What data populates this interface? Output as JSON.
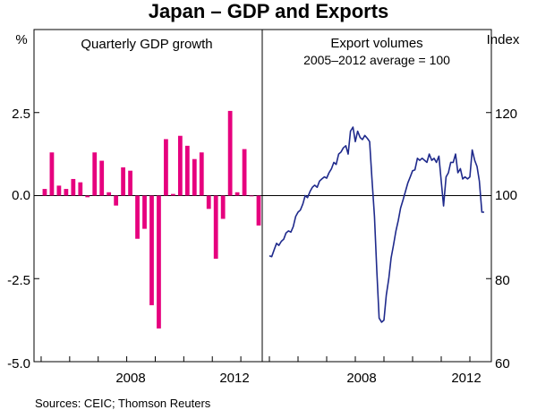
{
  "title": "Japan – GDP and Exports",
  "left_unit": "%",
  "right_unit": "Index",
  "source": "Sources: CEIC; Thomson Reuters",
  "colors": {
    "gdp": "#e6007e",
    "exports": "#1f2a8c",
    "axis": "#000000"
  },
  "chart_data": [
    {
      "type": "bar",
      "title": "Quarterly GDP growth",
      "ylabel": "%",
      "ylim": [
        -5.0,
        5.0
      ],
      "yticks": [
        "2.5",
        "0.0",
        "-2.5",
        "-5.0"
      ],
      "xlim": [
        2004.75,
        2012.75
      ],
      "xticks": [
        {
          "value": 2008,
          "label": "2008"
        },
        {
          "value": 2012,
          "label": "2012"
        }
      ],
      "categories": [
        "2005Q1",
        "2005Q2",
        "2005Q3",
        "2005Q4",
        "2006Q1",
        "2006Q2",
        "2006Q3",
        "2006Q4",
        "2007Q1",
        "2007Q2",
        "2007Q3",
        "2007Q4",
        "2008Q1",
        "2008Q2",
        "2008Q3",
        "2008Q4",
        "2009Q1",
        "2009Q2",
        "2009Q3",
        "2009Q4",
        "2010Q1",
        "2010Q2",
        "2010Q3",
        "2010Q4",
        "2011Q1",
        "2011Q2",
        "2011Q3",
        "2011Q4",
        "2012Q1",
        "2012Q2",
        "2012Q3"
      ],
      "x": [
        2005.0,
        2005.25,
        2005.5,
        2005.75,
        2006.0,
        2006.25,
        2006.5,
        2006.75,
        2007.0,
        2007.25,
        2007.5,
        2007.75,
        2008.0,
        2008.25,
        2008.5,
        2008.75,
        2009.0,
        2009.25,
        2009.5,
        2009.75,
        2010.0,
        2010.25,
        2010.5,
        2010.75,
        2011.0,
        2011.25,
        2011.5,
        2011.75,
        2012.0,
        2012.25,
        2012.5
      ],
      "values": [
        0.2,
        1.3,
        0.3,
        0.2,
        0.5,
        0.4,
        -0.05,
        1.3,
        1.05,
        0.1,
        -0.3,
        0.85,
        0.75,
        -1.3,
        -1.0,
        -3.3,
        -4.0,
        1.7,
        0.05,
        1.8,
        1.5,
        1.1,
        1.3,
        -0.4,
        -1.9,
        -0.7,
        2.55,
        0.1,
        1.4,
        0.0,
        -0.9
      ]
    },
    {
      "type": "line",
      "title": "Export volumes",
      "subtitle": "2005–2012 average = 100",
      "ylabel": "Index",
      "ylim": [
        60,
        140
      ],
      "yticks": [
        "120",
        "100",
        "80",
        "60"
      ],
      "xlim": [
        2004.75,
        2012.75
      ],
      "xticks": [
        {
          "value": 2008,
          "label": "2008"
        },
        {
          "value": 2012,
          "label": "2012"
        }
      ],
      "series": [
        {
          "name": "Export volumes",
          "x": [
            2005.0,
            2005.08,
            2005.17,
            2005.25,
            2005.33,
            2005.42,
            2005.5,
            2005.58,
            2005.67,
            2005.75,
            2005.83,
            2005.92,
            2006.0,
            2006.08,
            2006.17,
            2006.25,
            2006.33,
            2006.42,
            2006.5,
            2006.58,
            2006.67,
            2006.75,
            2006.83,
            2006.92,
            2007.0,
            2007.08,
            2007.17,
            2007.25,
            2007.33,
            2007.42,
            2007.5,
            2007.58,
            2007.67,
            2007.75,
            2007.83,
            2007.92,
            2008.0,
            2008.08,
            2008.17,
            2008.25,
            2008.33,
            2008.42,
            2008.5,
            2008.58,
            2008.67,
            2008.75,
            2008.83,
            2008.92,
            2009.0,
            2009.08,
            2009.17,
            2009.25,
            2009.33,
            2009.42,
            2009.5,
            2009.58,
            2009.67,
            2009.75,
            2009.83,
            2009.92,
            2010.0,
            2010.08,
            2010.17,
            2010.25,
            2010.33,
            2010.42,
            2010.5,
            2010.58,
            2010.67,
            2010.75,
            2010.83,
            2010.92,
            2011.0,
            2011.08,
            2011.17,
            2011.25,
            2011.33,
            2011.42,
            2011.5,
            2011.58,
            2011.67,
            2011.75,
            2011.83,
            2011.92,
            2012.0,
            2012.08,
            2012.17,
            2012.25,
            2012.33,
            2012.42,
            2012.5
          ],
          "values": [
            85.5,
            85.3,
            87.0,
            88.5,
            88.0,
            89.0,
            89.5,
            91.0,
            91.5,
            91.2,
            92.5,
            95.0,
            96.0,
            96.5,
            98.0,
            100.0,
            99.5,
            101.0,
            102.0,
            102.5,
            102.0,
            103.5,
            104.0,
            104.5,
            104.2,
            105.5,
            106.5,
            108.0,
            107.5,
            110.0,
            110.5,
            111.5,
            112.0,
            110.0,
            115.5,
            116.5,
            113.0,
            115.5,
            114.0,
            113.5,
            114.5,
            113.8,
            113.0,
            104.0,
            95.0,
            82.0,
            70.5,
            69.5,
            70.0,
            76.0,
            80.0,
            85.0,
            88.0,
            91.5,
            94.0,
            97.0,
            99.0,
            101.0,
            103.0,
            104.5,
            106.0,
            106.2,
            109.0,
            108.5,
            109.0,
            108.5,
            108.0,
            110.0,
            108.5,
            109.0,
            108.0,
            109.5,
            103.5,
            97.5,
            104.5,
            105.5,
            108.0,
            108.0,
            110.0,
            105.5,
            106.5,
            104.0,
            104.5,
            104.0,
            104.5,
            111.0,
            108.5,
            107.0,
            103.5,
            96.0,
            96.0
          ]
        }
      ]
    }
  ]
}
